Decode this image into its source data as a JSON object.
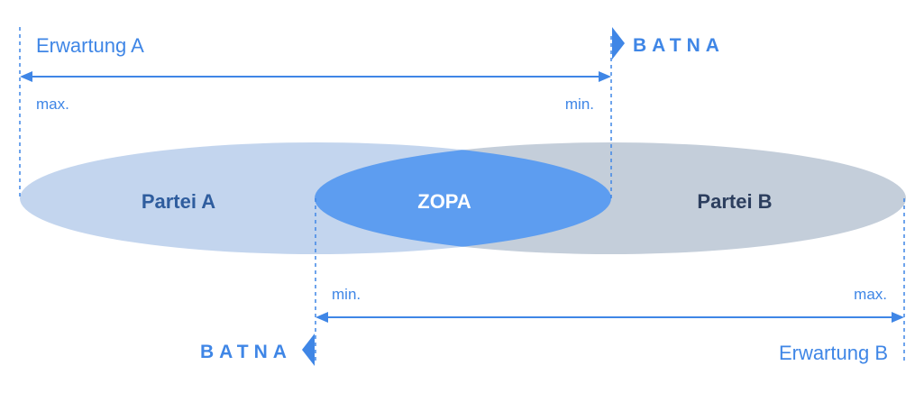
{
  "colors": {
    "accent": "#3f86e6",
    "party_a_fill": "#c3d5ee",
    "party_b_fill": "#c4ceda",
    "zopa_fill": "#5d9df0",
    "party_a_text": "#2f5d9e",
    "party_b_text": "#2c3e5e",
    "zopa_text": "#ffffff"
  },
  "expectation_a": {
    "label": "Erwartung A",
    "max_label": "max.",
    "min_label": "min.",
    "batna_label": "BATNA"
  },
  "expectation_b": {
    "label": "Erwartung B",
    "min_label": "min.",
    "max_label": "max.",
    "batna_label": "BATNA"
  },
  "party_a": {
    "label": "Partei A"
  },
  "party_b": {
    "label": "Partei B"
  },
  "zopa": {
    "label": "ZOPA"
  }
}
